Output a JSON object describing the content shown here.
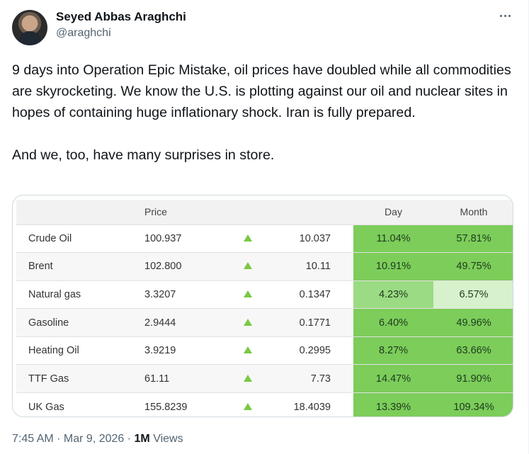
{
  "author": {
    "name": "Seyed Abbas Araghchi",
    "handle": "@araghchi"
  },
  "tweet": {
    "paragraph1": "9 days into Operation Epic Mistake, oil prices have doubled while all commodities are skyrocketing. We know the U.S. is plotting against our oil and nuclear sites in hopes of containing huge inflationary shock. Iran is fully prepared.",
    "paragraph2": "And we, too, have many surprises in store."
  },
  "table": {
    "headers": {
      "price": "Price",
      "day": "Day",
      "month": "Month"
    },
    "rows": [
      {
        "name": "Crude Oil",
        "price": "100.937",
        "change": "10.037",
        "day": "11.04%",
        "month": "57.81%",
        "day_color": "#7ccd5a",
        "month_color": "#7ccd5a"
      },
      {
        "name": "Brent",
        "price": "102.800",
        "change": "10.11",
        "day": "10.91%",
        "month": "49.75%",
        "day_color": "#7ccd5a",
        "month_color": "#7ccd5a"
      },
      {
        "name": "Natural gas",
        "price": "3.3207",
        "change": "0.1347",
        "day": "4.23%",
        "month": "6.57%",
        "day_color": "#9bdb84",
        "month_color": "#d7f1cc"
      },
      {
        "name": "Gasoline",
        "price": "2.9444",
        "change": "0.1771",
        "day": "6.40%",
        "month": "49.96%",
        "day_color": "#7ccd5a",
        "month_color": "#7ccd5a"
      },
      {
        "name": "Heating Oil",
        "price": "3.9219",
        "change": "0.2995",
        "day": "8.27%",
        "month": "63.66%",
        "day_color": "#7ccd5a",
        "month_color": "#7ccd5a"
      },
      {
        "name": "TTF Gas",
        "price": "61.11",
        "change": "7.73",
        "day": "14.47%",
        "month": "91.90%",
        "day_color": "#7ccd5a",
        "month_color": "#7ccd5a"
      },
      {
        "name": "UK Gas",
        "price": "155.8239",
        "change": "18.4039",
        "day": "13.39%",
        "month": "109.34%",
        "day_color": "#7ccd5a",
        "month_color": "#7ccd5a"
      }
    ],
    "arrow_icon": "triangle-up-icon",
    "arrow_color": "#7ac943"
  },
  "meta": {
    "time": "7:45 AM",
    "date": "Mar 9, 2026",
    "views_count": "1M",
    "views_label": "Views"
  }
}
